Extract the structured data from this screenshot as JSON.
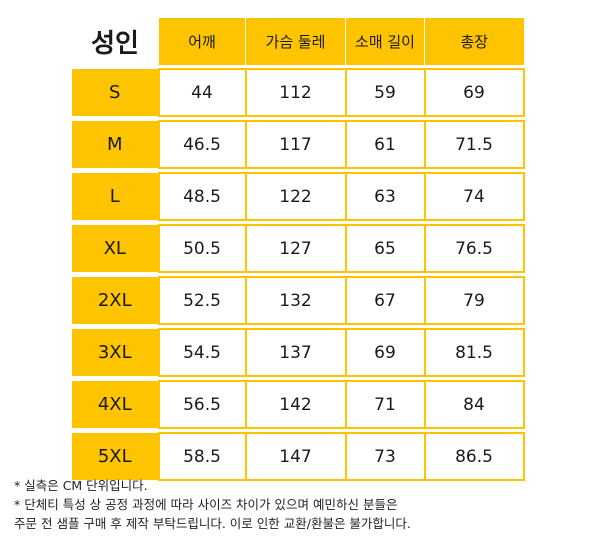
{
  "title": "성인",
  "headers": [
    "어깨",
    "가슴 둘레",
    "소매 길이",
    "총장"
  ],
  "rows": [
    {
      "size": "S",
      "values": [
        "44",
        "112",
        "59",
        "69"
      ]
    },
    {
      "size": "M",
      "values": [
        "46.5",
        "117",
        "61",
        "71.5"
      ]
    },
    {
      "size": "L",
      "values": [
        "48.5",
        "122",
        "63",
        "74"
      ]
    },
    {
      "size": "XL",
      "values": [
        "50.5",
        "127",
        "65",
        "76.5"
      ]
    },
    {
      "size": "2XL",
      "values": [
        "52.5",
        "132",
        "67",
        "79"
      ]
    },
    {
      "size": "3XL",
      "values": [
        "54.5",
        "137",
        "69",
        "81.5"
      ]
    },
    {
      "size": "4XL",
      "values": [
        "56.5",
        "142",
        "71",
        "84"
      ]
    },
    {
      "size": "5XL",
      "values": [
        "58.5",
        "147",
        "73",
        "86.5"
      ]
    }
  ],
  "notes": [
    "* 실측은 CM 단위입니다.",
    "* 단체티 특성 상 공정 과정에 따라 사이즈 차이가 있으며 예민하신 분들은",
    "주문 전 샘플 구매 후 제작 부탁드립니다. 이로 인한 교환/환불은 불가합니다."
  ],
  "colors": {
    "accent": "#ffc400"
  }
}
